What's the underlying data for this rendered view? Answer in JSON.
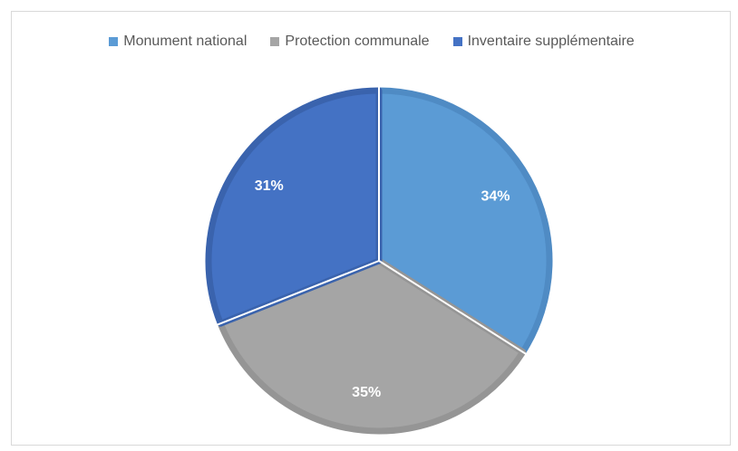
{
  "chart_data": {
    "type": "pie",
    "title": "",
    "categories": [
      "Monument national",
      "Protection communale",
      "Inventaire supplémentaire"
    ],
    "values": [
      34,
      35,
      31
    ],
    "labels": [
      "34%",
      "35%",
      "31%"
    ],
    "colors": [
      "#5b9bd5",
      "#a5a5a5",
      "#4472c4"
    ],
    "border_colors": [
      "#4f8bc4",
      "#959595",
      "#3a63ad"
    ],
    "legend_position": "top"
  }
}
